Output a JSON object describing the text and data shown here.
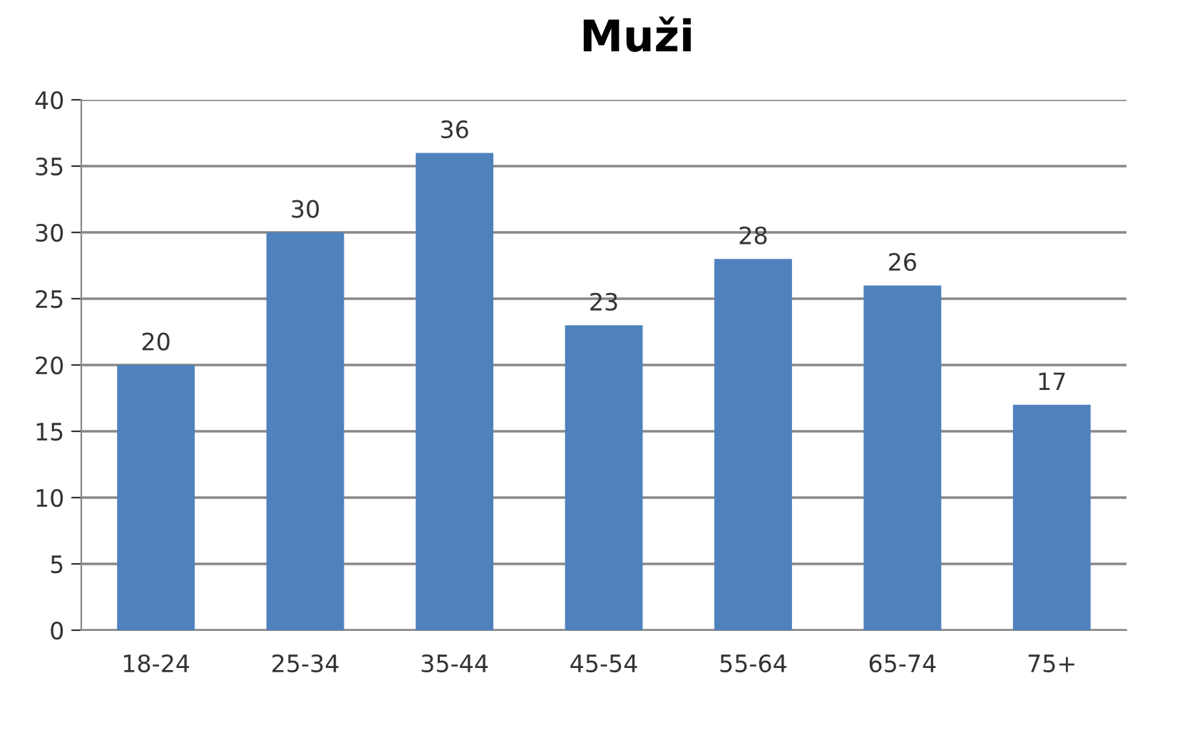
{
  "chart_data": {
    "type": "bar",
    "title": "Muži",
    "categories": [
      "18-24",
      "25-34",
      "35-44",
      "45-54",
      "55-64",
      "65-74",
      "75+"
    ],
    "values": [
      20,
      30,
      36,
      23,
      28,
      26,
      17
    ],
    "color": "#4f81bd",
    "ylim": [
      0,
      40
    ],
    "yticks": [
      0,
      5,
      10,
      15,
      20,
      25,
      30,
      35,
      40
    ],
    "grid": "y",
    "data_labels": true
  }
}
